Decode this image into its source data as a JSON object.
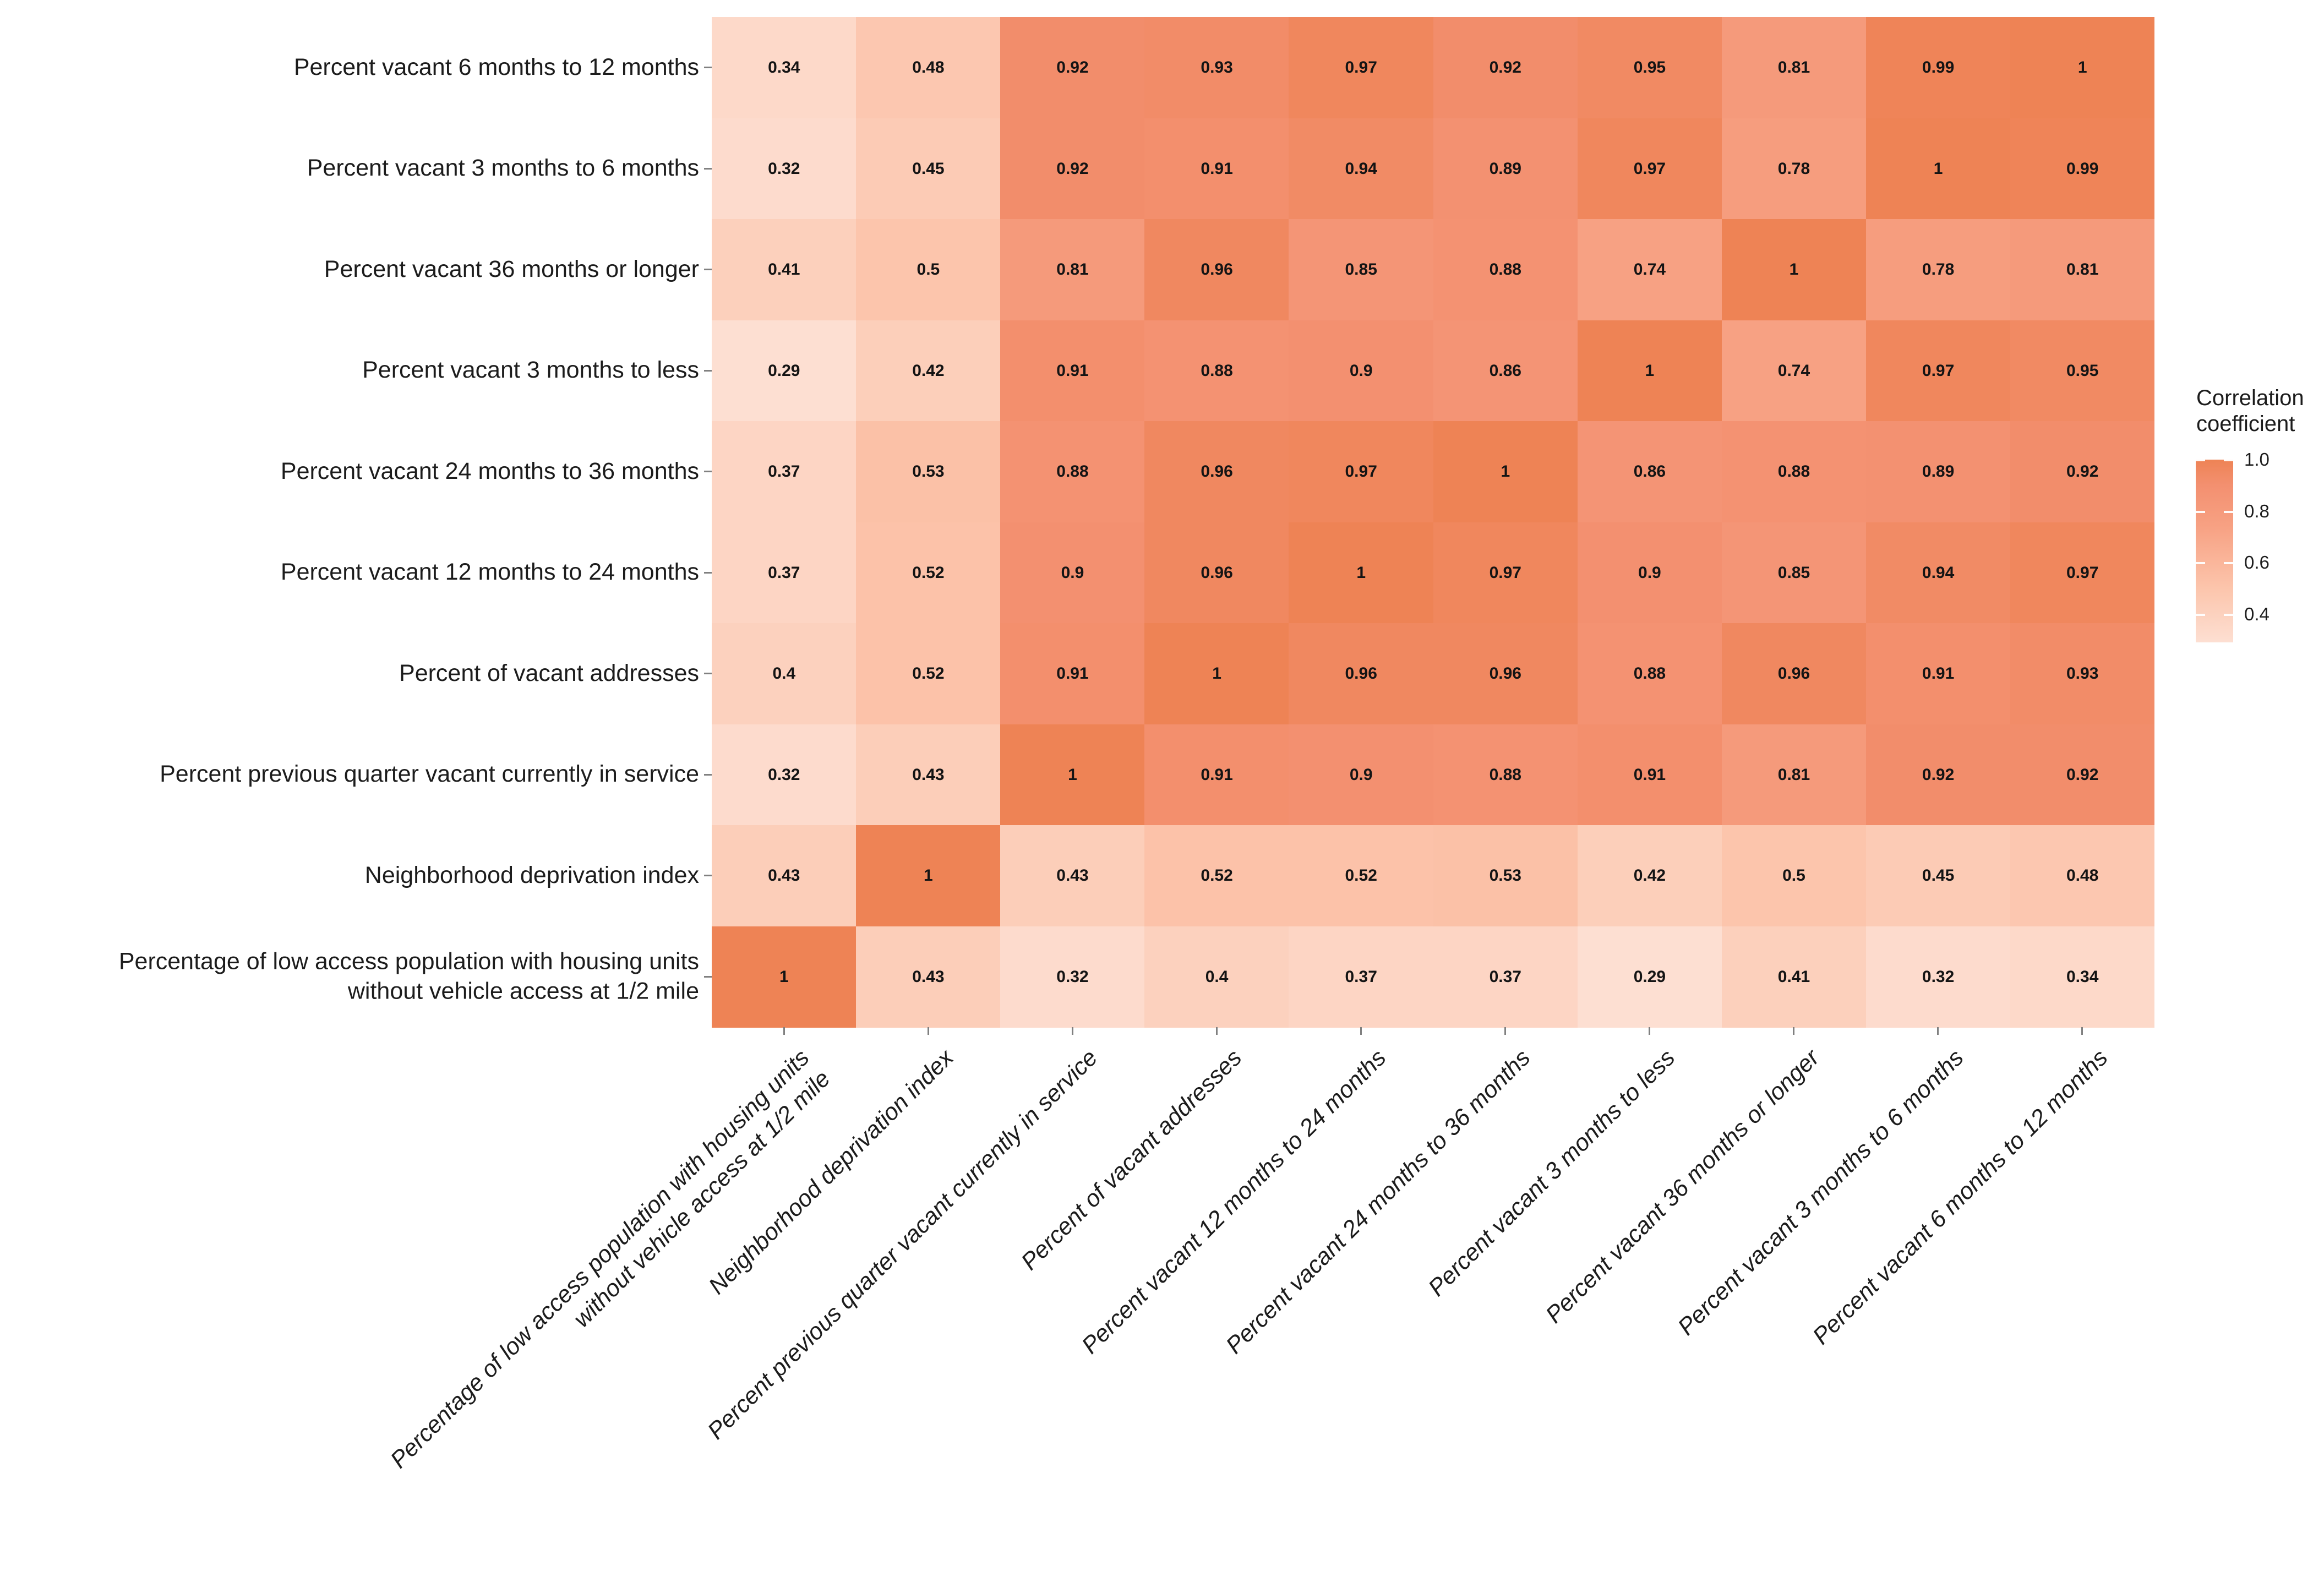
{
  "page": {
    "background": "#ffffff"
  },
  "chart_data": {
    "type": "heatmap",
    "title": "",
    "x_categories": [
      "Percentage of low access population with housing units\nwithout vehicle access at 1/2 mile",
      "Neighborhood deprivation index",
      "Percent previous quarter vacant currently in service",
      "Percent of vacant addresses",
      "Percent vacant 12 months to 24 months",
      "Percent vacant 24 months to 36 months",
      "Percent vacant 3 months to less",
      "Percent vacant 36 months or longer",
      "Percent vacant 3 months to 6 months",
      "Percent vacant 6 months to 12 months"
    ],
    "y_categories": [
      "Percent vacant 6 months to 12 months",
      "Percent vacant 3 months to 6 months",
      "Percent vacant 36 months or longer",
      "Percent vacant 3 months to less",
      "Percent vacant 24 months to 36 months",
      "Percent vacant 12 months to 24 months",
      "Percent of vacant addresses",
      "Percent previous quarter vacant currently in service",
      "Neighborhood deprivation index",
      "Percentage of low access population with housing units\nwithout vehicle access at 1/2 mile"
    ],
    "values": [
      [
        0.34,
        0.48,
        0.92,
        0.93,
        0.97,
        0.92,
        0.95,
        0.81,
        0.99,
        1
      ],
      [
        0.32,
        0.45,
        0.92,
        0.91,
        0.94,
        0.89,
        0.97,
        0.78,
        1,
        0.99
      ],
      [
        0.41,
        0.5,
        0.81,
        0.96,
        0.85,
        0.88,
        0.74,
        1,
        0.78,
        0.81
      ],
      [
        0.29,
        0.42,
        0.91,
        0.88,
        0.9,
        0.86,
        1,
        0.74,
        0.97,
        0.95
      ],
      [
        0.37,
        0.53,
        0.88,
        0.96,
        0.97,
        1,
        0.86,
        0.88,
        0.89,
        0.92
      ],
      [
        0.37,
        0.52,
        0.9,
        0.96,
        1,
        0.97,
        0.9,
        0.85,
        0.94,
        0.97
      ],
      [
        0.4,
        0.52,
        0.91,
        1,
        0.96,
        0.96,
        0.88,
        0.96,
        0.91,
        0.93
      ],
      [
        0.32,
        0.43,
        1,
        0.91,
        0.9,
        0.88,
        0.91,
        0.81,
        0.92,
        0.92
      ],
      [
        0.43,
        1,
        0.43,
        0.52,
        0.52,
        0.53,
        0.42,
        0.5,
        0.45,
        0.48
      ],
      [
        1,
        0.43,
        0.32,
        0.4,
        0.37,
        0.37,
        0.29,
        0.41,
        0.32,
        0.34
      ]
    ],
    "value_range": [
      0.29,
      1.0
    ],
    "palette_anchors": [
      {
        "v": 0.29,
        "color": "#FDDFD2"
      },
      {
        "v": 0.5,
        "color": "#FCC5AC"
      },
      {
        "v": 0.74,
        "color": "#F7A183"
      },
      {
        "v": 0.9,
        "color": "#F39070"
      },
      {
        "v": 1.0,
        "color": "#EE8355"
      }
    ],
    "legend": {
      "title": "Correlation coefficient",
      "position": "right",
      "ticks": [
        "1.0",
        "0.8",
        "0.6",
        "0.4"
      ],
      "tick_values": [
        1.0,
        0.8,
        0.6,
        0.4
      ]
    },
    "grid": false,
    "cell_text_color": "#141414"
  }
}
